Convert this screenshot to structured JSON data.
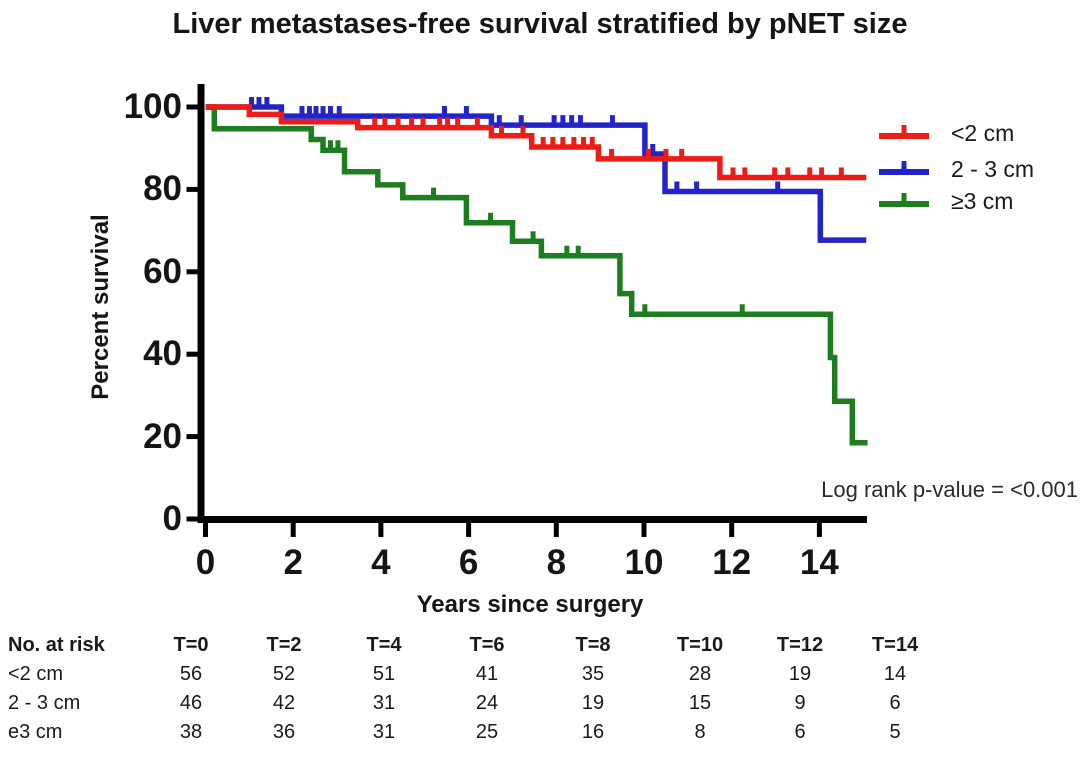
{
  "chart_data": {
    "type": "line",
    "subtype": "kaplan-meier-step",
    "title": "Liver metastases-free survival stratified by pNET size",
    "xlabel": "Years since surgery",
    "ylabel": "Percent survival",
    "annotation": "Log rank p-value = <0.001",
    "xlim": [
      0,
      15.2
    ],
    "ylim": [
      0,
      100
    ],
    "xticks": [
      0,
      2,
      4,
      6,
      8,
      10,
      12,
      14
    ],
    "yticks": [
      0,
      20,
      40,
      60,
      80,
      100
    ],
    "grid": false,
    "legend_position": "top-right",
    "series": [
      {
        "name": "<2 cm",
        "color": "#ED1C16",
        "steps": [
          [
            0,
            100
          ],
          [
            1.0,
            100
          ],
          [
            1.0,
            98.2
          ],
          [
            1.73,
            98.2
          ],
          [
            1.73,
            96.4
          ],
          [
            3.47,
            96.4
          ],
          [
            3.47,
            95.0
          ],
          [
            6.52,
            95.0
          ],
          [
            6.52,
            93.0
          ],
          [
            7.44,
            93.0
          ],
          [
            7.44,
            90.3
          ],
          [
            8.96,
            90.3
          ],
          [
            8.96,
            87.4
          ],
          [
            11.73,
            87.4
          ],
          [
            11.73,
            82.9
          ],
          [
            15.07,
            82.9
          ]
        ],
        "censors": [
          [
            3.86,
            95.0
          ],
          [
            4.09,
            95.0
          ],
          [
            4.39,
            95.0
          ],
          [
            4.7,
            95.0
          ],
          [
            4.96,
            95.0
          ],
          [
            5.34,
            95.0
          ],
          [
            5.52,
            95.0
          ],
          [
            5.75,
            95.0
          ],
          [
            6.2,
            95.0
          ],
          [
            6.75,
            93.0
          ],
          [
            7.24,
            93.0
          ],
          [
            7.7,
            90.3
          ],
          [
            7.92,
            90.3
          ],
          [
            8.15,
            90.3
          ],
          [
            8.4,
            90.3
          ],
          [
            8.62,
            90.3
          ],
          [
            8.82,
            90.3
          ],
          [
            9.26,
            87.4
          ],
          [
            10.1,
            87.4
          ],
          [
            10.5,
            87.4
          ],
          [
            10.86,
            87.4
          ],
          [
            12.03,
            82.9
          ],
          [
            12.3,
            82.9
          ],
          [
            12.98,
            82.9
          ],
          [
            13.28,
            82.9
          ],
          [
            13.78,
            82.9
          ],
          [
            14.05,
            82.9
          ],
          [
            14.5,
            82.9
          ]
        ]
      },
      {
        "name": "2 - 3 cm",
        "color": "#2323C8",
        "steps": [
          [
            0,
            100
          ],
          [
            1.73,
            100
          ],
          [
            1.73,
            97.8
          ],
          [
            6.52,
            97.8
          ],
          [
            6.52,
            95.6
          ],
          [
            10.02,
            95.6
          ],
          [
            10.02,
            88.6
          ],
          [
            10.48,
            88.6
          ],
          [
            10.48,
            79.5
          ],
          [
            14.02,
            79.5
          ],
          [
            14.02,
            67.7
          ],
          [
            15.07,
            67.7
          ]
        ],
        "censors": [
          [
            1.05,
            100
          ],
          [
            1.22,
            100
          ],
          [
            1.4,
            100
          ],
          [
            2.2,
            97.8
          ],
          [
            2.37,
            97.8
          ],
          [
            2.52,
            97.8
          ],
          [
            2.68,
            97.8
          ],
          [
            2.85,
            97.8
          ],
          [
            3.05,
            97.8
          ],
          [
            5.45,
            97.8
          ],
          [
            5.95,
            97.8
          ],
          [
            6.7,
            95.6
          ],
          [
            7.2,
            95.6
          ],
          [
            7.95,
            95.6
          ],
          [
            8.15,
            95.6
          ],
          [
            8.35,
            95.6
          ],
          [
            8.55,
            95.6
          ],
          [
            9.28,
            95.6
          ],
          [
            10.2,
            88.6
          ],
          [
            10.75,
            79.5
          ],
          [
            11.2,
            79.5
          ],
          [
            13.05,
            79.5
          ]
        ]
      },
      {
        "name": "≥3 cm",
        "color": "#1E7D1E",
        "steps": [
          [
            0,
            100
          ],
          [
            0.2,
            100
          ],
          [
            0.2,
            94.7
          ],
          [
            2.41,
            94.7
          ],
          [
            2.41,
            92.1
          ],
          [
            2.68,
            92.1
          ],
          [
            2.68,
            89.5
          ],
          [
            3.17,
            89.5
          ],
          [
            3.17,
            84.3
          ],
          [
            3.93,
            84.3
          ],
          [
            3.93,
            81.1
          ],
          [
            4.5,
            81.1
          ],
          [
            4.5,
            78.0
          ],
          [
            5.95,
            78.0
          ],
          [
            5.95,
            71.9
          ],
          [
            7.0,
            71.9
          ],
          [
            7.0,
            67.4
          ],
          [
            7.66,
            67.4
          ],
          [
            7.66,
            63.9
          ],
          [
            9.45,
            63.9
          ],
          [
            9.45,
            54.7
          ],
          [
            9.72,
            54.7
          ],
          [
            9.72,
            49.7
          ],
          [
            14.25,
            49.7
          ],
          [
            14.25,
            39.2
          ],
          [
            14.35,
            39.2
          ],
          [
            14.35,
            28.6
          ],
          [
            14.75,
            28.6
          ],
          [
            14.75,
            18.5
          ],
          [
            15.1,
            18.5
          ]
        ],
        "censors": [
          [
            2.85,
            89.5
          ],
          [
            3.02,
            89.5
          ],
          [
            5.2,
            78.0
          ],
          [
            6.5,
            71.9
          ],
          [
            7.47,
            67.4
          ],
          [
            8.24,
            63.9
          ],
          [
            8.5,
            63.9
          ],
          [
            10.02,
            49.7
          ],
          [
            12.24,
            49.7
          ]
        ]
      }
    ]
  },
  "risk_table": {
    "header_label": "No. at risk",
    "time_headers": [
      "T=0",
      "T=2",
      "T=4",
      "T=6",
      "T=8",
      "T=10",
      "T=12",
      "T=14"
    ],
    "rows": [
      {
        "label": "<2 cm",
        "values": [
          56,
          52,
          51,
          41,
          35,
          28,
          19,
          14
        ]
      },
      {
        "label": "2 - 3 cm",
        "values": [
          46,
          42,
          31,
          24,
          19,
          15,
          9,
          6
        ]
      },
      {
        "label": "e3 cm",
        "values": [
          38,
          36,
          31,
          25,
          16,
          8,
          6,
          5
        ]
      }
    ]
  }
}
